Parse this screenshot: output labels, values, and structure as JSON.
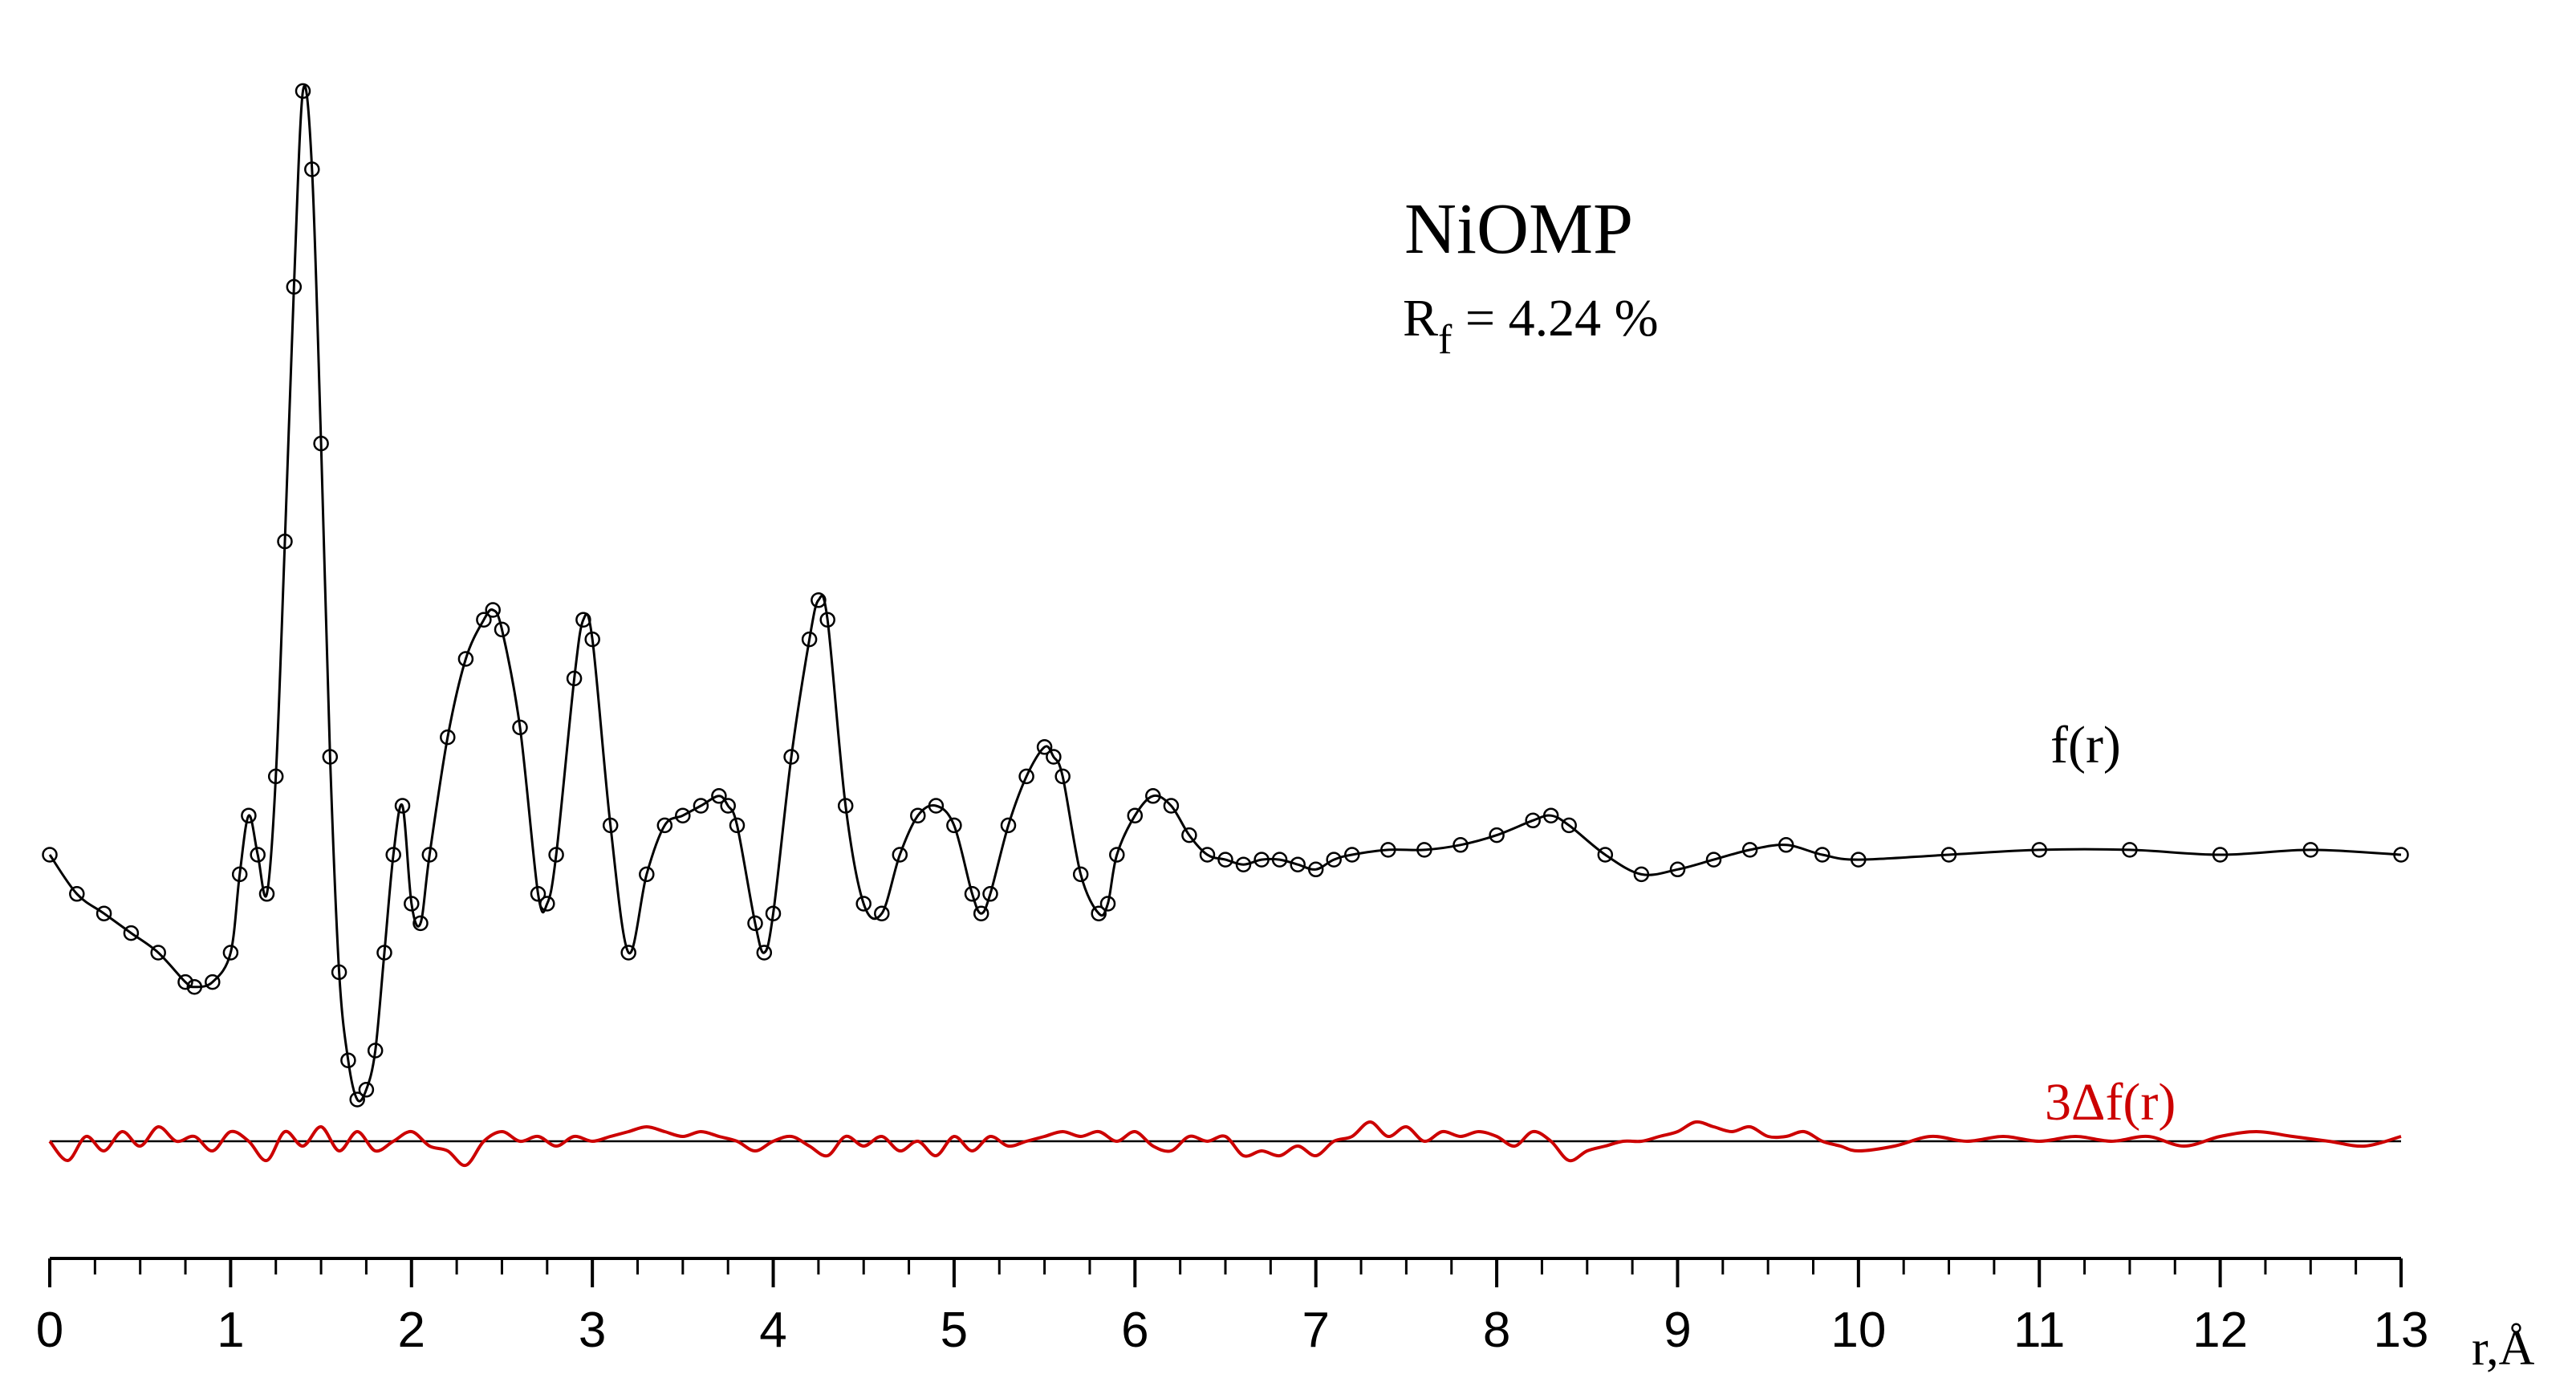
{
  "chart_data": {
    "type": "line",
    "title": "NiOMP",
    "subtitle": {
      "symbol": "R",
      "subscript": "f",
      "text": " = 4.24 %"
    },
    "xlabel": "r,Å",
    "ylabel": "",
    "xlim": [
      0,
      13
    ],
    "ylim": [
      -2.6,
      8.6
    ],
    "x_ticks": [
      0,
      1,
      2,
      3,
      4,
      5,
      6,
      7,
      8,
      9,
      10,
      11,
      12,
      13
    ],
    "x_tick_labels": [
      "0",
      "1",
      "2",
      "3",
      "4",
      "5",
      "6",
      "7",
      "8",
      "9",
      "10",
      "11",
      "12",
      "13"
    ],
    "grid": false,
    "legend": "none",
    "series": [
      {
        "name": "f(r)",
        "style": "line+open-circles",
        "color": "#000000",
        "x": [
          0.0,
          0.15,
          0.3,
          0.45,
          0.6,
          0.75,
          0.8,
          0.9,
          1.0,
          1.05,
          1.1,
          1.15,
          1.2,
          1.25,
          1.3,
          1.35,
          1.4,
          1.45,
          1.5,
          1.55,
          1.6,
          1.65,
          1.7,
          1.75,
          1.8,
          1.85,
          1.9,
          1.95,
          2.0,
          2.05,
          2.1,
          2.2,
          2.3,
          2.4,
          2.45,
          2.5,
          2.6,
          2.7,
          2.75,
          2.8,
          2.9,
          2.95,
          3.0,
          3.1,
          3.2,
          3.3,
          3.4,
          3.5,
          3.6,
          3.7,
          3.75,
          3.8,
          3.9,
          3.95,
          4.0,
          4.1,
          4.2,
          4.25,
          4.3,
          4.4,
          4.5,
          4.6,
          4.7,
          4.8,
          4.9,
          5.0,
          5.1,
          5.15,
          5.2,
          5.3,
          5.4,
          5.5,
          5.55,
          5.6,
          5.7,
          5.8,
          5.85,
          5.9,
          6.0,
          6.1,
          6.2,
          6.3,
          6.4,
          6.5,
          6.6,
          6.7,
          6.8,
          6.9,
          7.0,
          7.1,
          7.2,
          7.4,
          7.6,
          7.8,
          8.0,
          8.2,
          8.3,
          8.4,
          8.6,
          8.8,
          9.0,
          9.2,
          9.4,
          9.6,
          9.8,
          10.0,
          10.5,
          11.0,
          11.5,
          12.0,
          12.5,
          13.0
        ],
        "y": [
          0.0,
          -0.4,
          -0.6,
          -0.8,
          -1.0,
          -1.3,
          -1.35,
          -1.3,
          -1.0,
          -0.2,
          0.4,
          0.0,
          -0.4,
          0.8,
          3.2,
          5.8,
          7.8,
          7.0,
          4.2,
          1.0,
          -1.2,
          -2.1,
          -2.5,
          -2.4,
          -2.0,
          -1.0,
          0.0,
          0.5,
          -0.5,
          -0.7,
          0.0,
          1.2,
          2.0,
          2.4,
          2.5,
          2.3,
          1.3,
          -0.4,
          -0.5,
          0.0,
          1.8,
          2.4,
          2.2,
          0.3,
          -1.0,
          -0.2,
          0.3,
          0.4,
          0.5,
          0.6,
          0.5,
          0.3,
          -0.7,
          -1.0,
          -0.6,
          1.0,
          2.2,
          2.6,
          2.4,
          0.5,
          -0.5,
          -0.6,
          0.0,
          0.4,
          0.5,
          0.3,
          -0.4,
          -0.6,
          -0.4,
          0.3,
          0.8,
          1.1,
          1.0,
          0.8,
          -0.2,
          -0.6,
          -0.5,
          0.0,
          0.4,
          0.6,
          0.5,
          0.2,
          0.0,
          -0.05,
          -0.1,
          -0.05,
          -0.05,
          -0.1,
          -0.15,
          -0.05,
          0.0,
          0.05,
          0.05,
          0.1,
          0.2,
          0.35,
          0.4,
          0.3,
          0.0,
          -0.2,
          -0.15,
          -0.05,
          0.05,
          0.1,
          0.0,
          -0.05,
          0.0,
          0.05,
          0.05,
          0.0,
          0.05,
          0.0
        ]
      },
      {
        "name": "3Δf(r)",
        "style": "line",
        "color": "#cc0000",
        "x": [
          0.0,
          0.1,
          0.2,
          0.3,
          0.4,
          0.5,
          0.6,
          0.7,
          0.8,
          0.9,
          1.0,
          1.1,
          1.2,
          1.3,
          1.4,
          1.5,
          1.6,
          1.7,
          1.8,
          1.9,
          2.0,
          2.1,
          2.2,
          2.3,
          2.4,
          2.5,
          2.6,
          2.7,
          2.8,
          2.9,
          3.0,
          3.1,
          3.2,
          3.3,
          3.4,
          3.5,
          3.6,
          3.7,
          3.8,
          3.9,
          4.0,
          4.1,
          4.2,
          4.3,
          4.4,
          4.5,
          4.6,
          4.7,
          4.8,
          4.9,
          5.0,
          5.1,
          5.2,
          5.3,
          5.4,
          5.5,
          5.6,
          5.7,
          5.8,
          5.9,
          6.0,
          6.1,
          6.2,
          6.3,
          6.4,
          6.5,
          6.6,
          6.7,
          6.8,
          6.9,
          7.0,
          7.1,
          7.2,
          7.3,
          7.4,
          7.5,
          7.6,
          7.7,
          7.8,
          7.9,
          8.0,
          8.1,
          8.2,
          8.3,
          8.4,
          8.5,
          8.6,
          8.7,
          8.8,
          8.9,
          9.0,
          9.1,
          9.2,
          9.3,
          9.4,
          9.5,
          9.6,
          9.7,
          9.8,
          9.9,
          10.0,
          10.2,
          10.4,
          10.6,
          10.8,
          11.0,
          11.2,
          11.4,
          11.6,
          11.8,
          12.0,
          12.2,
          12.4,
          12.6,
          12.8,
          13.0
        ],
        "y": [
          0.0,
          -0.2,
          0.05,
          -0.1,
          0.1,
          -0.05,
          0.15,
          0.0,
          0.05,
          -0.1,
          0.1,
          0.0,
          -0.2,
          0.1,
          -0.05,
          0.15,
          -0.1,
          0.1,
          -0.1,
          0.0,
          0.1,
          -0.05,
          -0.1,
          -0.25,
          0.0,
          0.1,
          0.0,
          0.05,
          -0.05,
          0.05,
          0.0,
          0.05,
          0.1,
          0.15,
          0.1,
          0.05,
          0.1,
          0.05,
          0.0,
          -0.1,
          0.0,
          0.05,
          -0.05,
          -0.15,
          0.05,
          -0.05,
          0.05,
          -0.1,
          0.0,
          -0.15,
          0.05,
          -0.1,
          0.05,
          -0.05,
          0.0,
          0.05,
          0.1,
          0.05,
          0.1,
          0.0,
          0.1,
          -0.05,
          -0.1,
          0.05,
          0.0,
          0.05,
          -0.15,
          -0.1,
          -0.15,
          -0.05,
          -0.15,
          0.0,
          0.05,
          0.2,
          0.05,
          0.15,
          0.0,
          0.1,
          0.05,
          0.1,
          0.05,
          -0.05,
          0.1,
          0.0,
          -0.2,
          -0.1,
          -0.05,
          0.0,
          0.0,
          0.05,
          0.1,
          0.2,
          0.15,
          0.1,
          0.15,
          0.05,
          0.05,
          0.1,
          0.0,
          -0.05,
          -0.1,
          -0.05,
          0.05,
          0.0,
          0.05,
          0.0,
          0.05,
          0.0,
          0.05,
          -0.05,
          0.05,
          0.1,
          0.05,
          0.0,
          -0.05,
          0.05
        ]
      }
    ],
    "zero_line": {
      "color": "#000000",
      "series": "3Δf(r)"
    }
  }
}
